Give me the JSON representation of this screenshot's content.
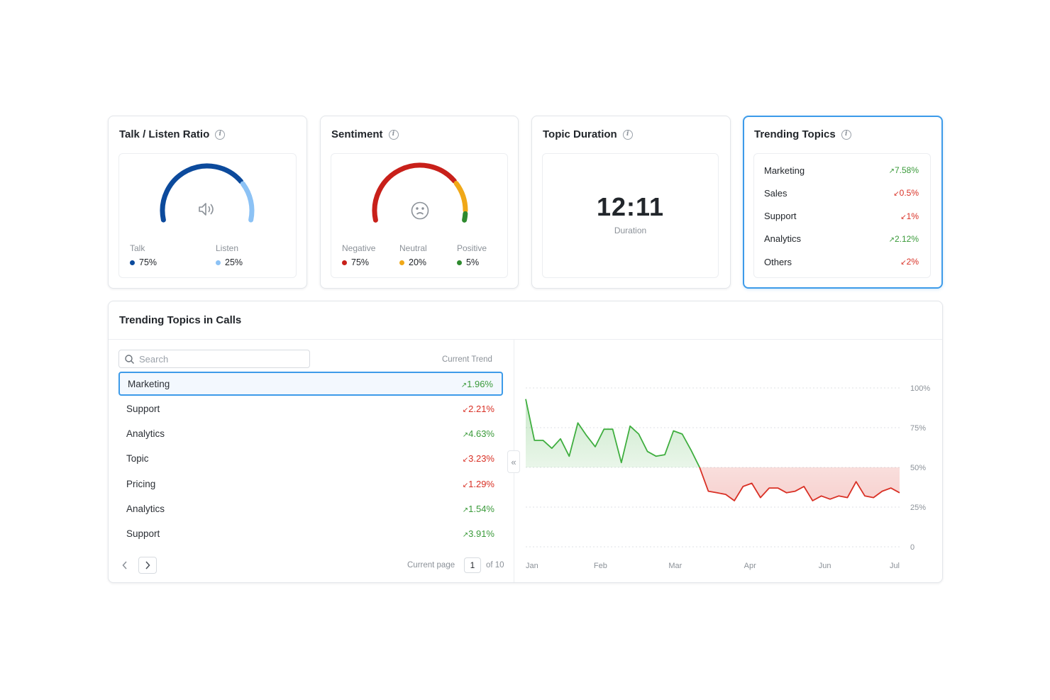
{
  "talk_listen": {
    "title": "Talk / Listen Ratio",
    "talk_label": "Talk",
    "talk_value": "75%",
    "listen_label": "Listen",
    "listen_value": "25%",
    "talk_fraction": 0.75,
    "colors": {
      "talk": "#0c4a9c",
      "listen": "#8cc2f5"
    }
  },
  "sentiment": {
    "title": "Sentiment",
    "items": [
      {
        "label": "Negative",
        "value": "75%",
        "color": "#c8201a"
      },
      {
        "label": "Neutral",
        "value": "20%",
        "color": "#f0a818"
      },
      {
        "label": "Positive",
        "value": "5%",
        "color": "#2e8a2e"
      }
    ]
  },
  "topic_duration": {
    "title": "Topic Duration",
    "value": "12:11",
    "label": "Duration"
  },
  "trending_topics": {
    "title": "Trending Topics",
    "items": [
      {
        "name": "Marketing",
        "value": "7.58%",
        "dir": "up"
      },
      {
        "name": "Sales",
        "value": "0.5%",
        "dir": "down"
      },
      {
        "name": "Support",
        "value": "1%",
        "dir": "down"
      },
      {
        "name": "Analytics",
        "value": "2.12%",
        "dir": "up"
      },
      {
        "name": "Others",
        "value": "2%",
        "dir": "down"
      }
    ]
  },
  "calls": {
    "title": "Trending Topics in Calls",
    "search_placeholder": "Search",
    "column_header": "Current Trend",
    "rows": [
      {
        "name": "Marketing",
        "value": "1.96%",
        "dir": "up",
        "selected": true
      },
      {
        "name": "Support",
        "value": "2.21%",
        "dir": "down"
      },
      {
        "name": "Analytics",
        "value": "4.63%",
        "dir": "up"
      },
      {
        "name": "Topic",
        "value": "3.23%",
        "dir": "down"
      },
      {
        "name": "Pricing",
        "value": "1.29%",
        "dir": "down"
      },
      {
        "name": "Analytics",
        "value": "1.54%",
        "dir": "up"
      },
      {
        "name": "Support",
        "value": "3.91%",
        "dir": "up"
      }
    ],
    "pager": {
      "label": "Current page",
      "page": "1",
      "of": "of 10"
    }
  },
  "chart_data": {
    "type": "line",
    "x_labels": [
      "Jan",
      "Feb",
      "Mar",
      "Apr",
      "Jun",
      "Jul"
    ],
    "y_ticks": [
      "100%",
      "75%",
      "50%",
      "25%",
      "0"
    ],
    "ylim": [
      0,
      100
    ],
    "baseline": 50,
    "grid": true,
    "colors": {
      "above": "#3fae3f",
      "below": "#d93025"
    },
    "values": [
      93,
      67,
      67,
      62,
      68,
      57,
      78,
      70,
      63,
      74,
      74,
      53,
      76,
      71,
      60,
      57,
      58,
      73,
      71,
      61,
      50,
      35,
      34,
      33,
      29,
      38,
      40,
      31,
      37,
      37,
      34,
      35,
      38,
      29,
      32,
      30,
      32,
      31,
      41,
      32,
      31,
      35,
      37,
      34
    ]
  }
}
